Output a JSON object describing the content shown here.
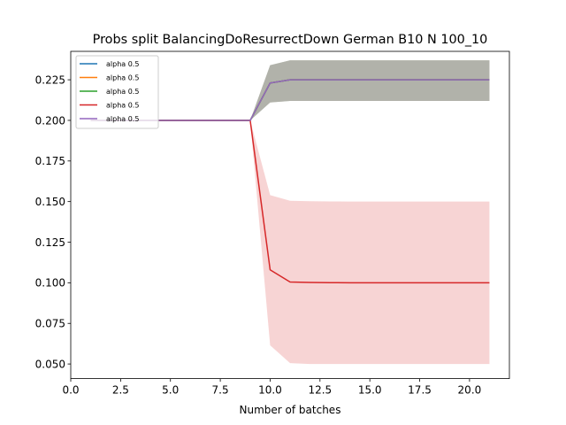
{
  "chart_data": {
    "type": "line",
    "title": "Probs split BalancingDoResurrectDown German B10 N 100_10",
    "xlabel": "Number of batches",
    "ylabel": "",
    "xlim": [
      0.0,
      22.0
    ],
    "ylim": [
      0.041,
      0.2425
    ],
    "xticks": [
      0.0,
      2.5,
      5.0,
      7.5,
      10.0,
      12.5,
      15.0,
      17.5,
      20.0
    ],
    "xtick_labels": [
      "0.0",
      "2.5",
      "5.0",
      "7.5",
      "10.0",
      "12.5",
      "15.0",
      "17.5",
      "20.0"
    ],
    "yticks": [
      0.05,
      0.075,
      0.1,
      0.125,
      0.15,
      0.175,
      0.2,
      0.225
    ],
    "ytick_labels": [
      "0.050",
      "0.075",
      "0.100",
      "0.125",
      "0.150",
      "0.175",
      "0.200",
      "0.225"
    ],
    "grid": false,
    "legend_position": "top-left",
    "x": [
      1,
      2,
      3,
      4,
      5,
      6,
      7,
      8,
      9,
      10,
      11,
      12,
      13,
      14,
      15,
      16,
      17,
      18,
      19,
      20,
      21
    ],
    "series": [
      {
        "name": "alpha 0.5",
        "color": "#1f77b4",
        "values": [
          0.2,
          0.2,
          0.2,
          0.2,
          0.2,
          0.2,
          0.2,
          0.2,
          0.2,
          0.223,
          0.225,
          0.225,
          0.225,
          0.225,
          0.225,
          0.225,
          0.225,
          0.225,
          0.225,
          0.225,
          0.225
        ],
        "lower": [
          0.2,
          0.2,
          0.2,
          0.2,
          0.2,
          0.2,
          0.2,
          0.2,
          0.2,
          0.211,
          0.212,
          0.212,
          0.212,
          0.212,
          0.212,
          0.212,
          0.212,
          0.212,
          0.212,
          0.212,
          0.212
        ],
        "upper": [
          0.2,
          0.2,
          0.2,
          0.2,
          0.2,
          0.2,
          0.2,
          0.2,
          0.2,
          0.234,
          0.237,
          0.237,
          0.237,
          0.237,
          0.237,
          0.237,
          0.237,
          0.237,
          0.237,
          0.237,
          0.237
        ]
      },
      {
        "name": "alpha 0.5",
        "color": "#ff7f0e",
        "values": [
          0.2,
          0.2,
          0.2,
          0.2,
          0.2,
          0.2,
          0.2,
          0.2,
          0.2,
          0.223,
          0.225,
          0.225,
          0.225,
          0.225,
          0.225,
          0.225,
          0.225,
          0.225,
          0.225,
          0.225,
          0.225
        ],
        "lower": [
          0.2,
          0.2,
          0.2,
          0.2,
          0.2,
          0.2,
          0.2,
          0.2,
          0.2,
          0.211,
          0.212,
          0.212,
          0.212,
          0.212,
          0.212,
          0.212,
          0.212,
          0.212,
          0.212,
          0.212,
          0.212
        ],
        "upper": [
          0.2,
          0.2,
          0.2,
          0.2,
          0.2,
          0.2,
          0.2,
          0.2,
          0.2,
          0.234,
          0.237,
          0.237,
          0.237,
          0.237,
          0.237,
          0.237,
          0.237,
          0.237,
          0.237,
          0.237,
          0.237
        ]
      },
      {
        "name": "alpha 0.5",
        "color": "#2ca02c",
        "values": [
          0.2,
          0.2,
          0.2,
          0.2,
          0.2,
          0.2,
          0.2,
          0.2,
          0.2,
          0.223,
          0.225,
          0.225,
          0.225,
          0.225,
          0.225,
          0.225,
          0.225,
          0.225,
          0.225,
          0.225,
          0.225
        ],
        "lower": [
          0.2,
          0.2,
          0.2,
          0.2,
          0.2,
          0.2,
          0.2,
          0.2,
          0.2,
          0.211,
          0.212,
          0.212,
          0.212,
          0.212,
          0.212,
          0.212,
          0.212,
          0.212,
          0.212,
          0.212,
          0.212
        ],
        "upper": [
          0.2,
          0.2,
          0.2,
          0.2,
          0.2,
          0.2,
          0.2,
          0.2,
          0.2,
          0.234,
          0.237,
          0.237,
          0.237,
          0.237,
          0.237,
          0.237,
          0.237,
          0.237,
          0.237,
          0.237,
          0.237
        ]
      },
      {
        "name": "alpha 0.5",
        "color": "#d62728",
        "values": [
          0.2,
          0.2,
          0.2,
          0.2,
          0.2,
          0.2,
          0.2,
          0.2,
          0.2,
          0.108,
          0.1005,
          0.1002,
          0.1001,
          0.1,
          0.1,
          0.1,
          0.1,
          0.1,
          0.1,
          0.1,
          0.1
        ],
        "lower": [
          0.2,
          0.2,
          0.2,
          0.2,
          0.2,
          0.2,
          0.2,
          0.2,
          0.2,
          0.0615,
          0.0505,
          0.05,
          0.05,
          0.05,
          0.05,
          0.05,
          0.05,
          0.05,
          0.05,
          0.05,
          0.05
        ],
        "upper": [
          0.2,
          0.2,
          0.2,
          0.2,
          0.2,
          0.2,
          0.2,
          0.2,
          0.2,
          0.154,
          0.1505,
          0.1502,
          0.1501,
          0.15,
          0.15,
          0.15,
          0.15,
          0.15,
          0.15,
          0.15,
          0.15
        ]
      },
      {
        "name": "alpha 0.5",
        "color": "#9467bd",
        "values": [
          0.2,
          0.2,
          0.2,
          0.2,
          0.2,
          0.2,
          0.2,
          0.2,
          0.2,
          0.223,
          0.225,
          0.225,
          0.225,
          0.225,
          0.225,
          0.225,
          0.225,
          0.225,
          0.225,
          0.225,
          0.225
        ],
        "lower": [
          0.2,
          0.2,
          0.2,
          0.2,
          0.2,
          0.2,
          0.2,
          0.2,
          0.2,
          0.211,
          0.212,
          0.212,
          0.212,
          0.212,
          0.212,
          0.212,
          0.212,
          0.212,
          0.212,
          0.212,
          0.212
        ],
        "upper": [
          0.2,
          0.2,
          0.2,
          0.2,
          0.2,
          0.2,
          0.2,
          0.2,
          0.2,
          0.234,
          0.237,
          0.237,
          0.237,
          0.237,
          0.237,
          0.237,
          0.237,
          0.237,
          0.237,
          0.237,
          0.237
        ]
      }
    ]
  }
}
